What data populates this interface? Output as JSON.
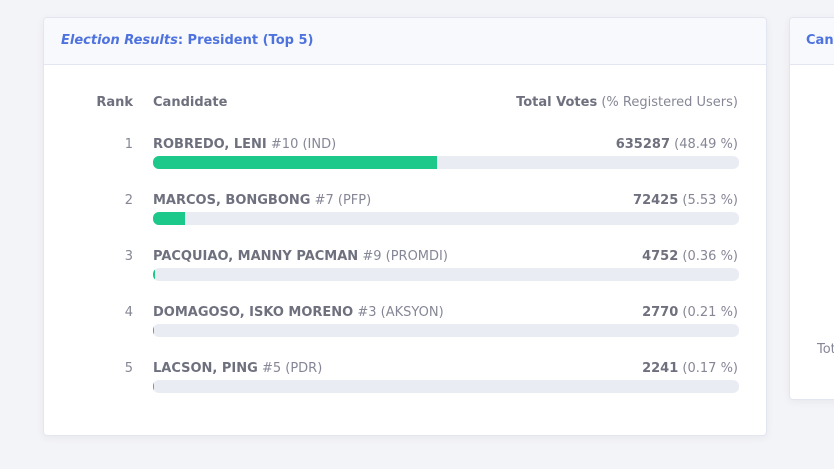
{
  "card": {
    "title_em": "Election Results",
    "title_rest": ": President (Top 5)",
    "columns": {
      "rank": "Rank",
      "candidate": "Candidate",
      "votes": "Total Votes",
      "votes_note": "(% Registered Users)"
    },
    "rows": [
      {
        "rank": 1,
        "name": "ROBREDO, LENI",
        "details": "#10 (IND)",
        "votes": 635287,
        "percent": 48.49,
        "percent_label": "(48.49 %)"
      },
      {
        "rank": 2,
        "name": "MARCOS, BONGBONG",
        "details": "#7 (PFP)",
        "votes": 72425,
        "percent": 5.53,
        "percent_label": "(5.53 %)"
      },
      {
        "rank": 3,
        "name": "PACQUIAO, MANNY PACMAN",
        "details": "#9 (PROMDI)",
        "votes": 4752,
        "percent": 0.36,
        "percent_label": "(0.36 %)"
      },
      {
        "rank": 4,
        "name": "DOMAGOSO, ISKO MORENO",
        "details": "#3 (AKSYON)",
        "votes": 2770,
        "percent": 0.21,
        "percent_label": "(0.21 %)"
      },
      {
        "rank": 5,
        "name": "LACSON, PING",
        "details": "#5 (PDR)",
        "votes": 2241,
        "percent": 0.17,
        "percent_label": "(0.17 %)"
      }
    ],
    "bar_color": "#1cc88a"
  },
  "side_card": {
    "title": "Canv",
    "text": "Tot"
  }
}
